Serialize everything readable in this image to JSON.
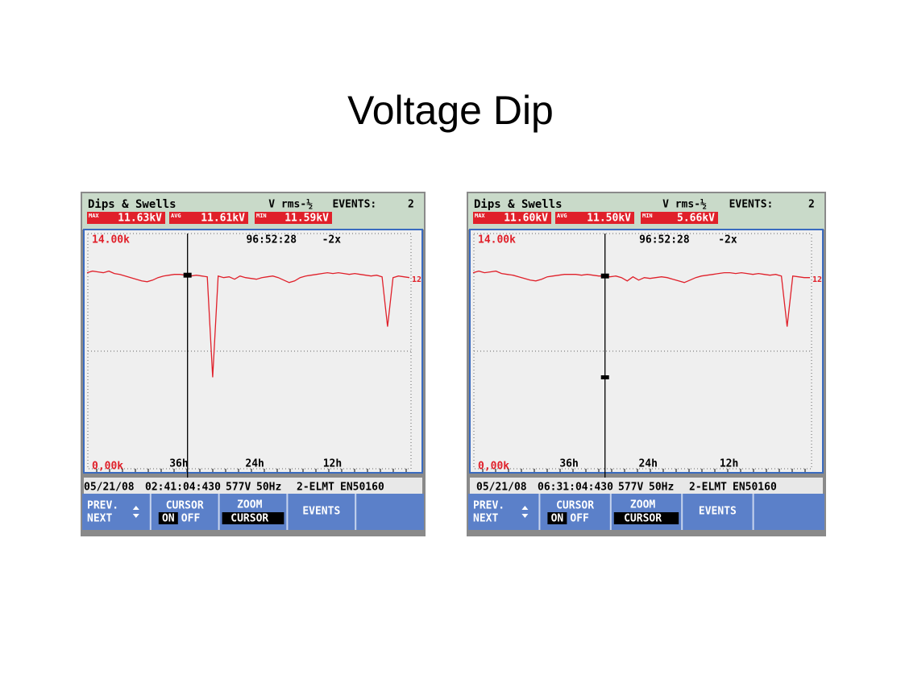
{
  "title": "Voltage Dip",
  "screens": [
    {
      "header": {
        "mode": "Dips & Swells",
        "measure": "V rms-½",
        "events_label": "EVENTS:",
        "events": "2"
      },
      "readings": [
        {
          "tag": "MAX",
          "value": "11.63kV"
        },
        {
          "tag": "AVG",
          "value": "11.61kV"
        },
        {
          "tag": "MIN",
          "value": "11.59kV"
        }
      ],
      "plot": {
        "y_top": "14.00k",
        "y_bottom": "0,00k",
        "timer": "96:52:28",
        "zoom": "-2x",
        "level": "12",
        "x_labels": [
          "36h",
          "24h",
          "12h"
        ],
        "ylim": [
          0,
          14
        ],
        "trace": [
          11.8,
          11.9,
          11.85,
          11.8,
          11.9,
          11.75,
          11.7,
          11.6,
          11.5,
          11.4,
          11.3,
          11.25,
          11.35,
          11.5,
          11.6,
          11.65,
          11.7,
          11.7,
          11.65,
          11.6,
          11.65,
          11.6,
          11.55,
          5.4,
          11.6,
          11.5,
          11.55,
          11.4,
          11.6,
          11.5,
          11.45,
          11.4,
          11.5,
          11.55,
          11.6,
          11.5,
          11.35,
          11.2,
          11.3,
          11.5,
          11.6,
          11.65,
          11.7,
          11.75,
          11.8,
          11.75,
          11.8,
          11.75,
          11.7,
          11.75,
          11.7,
          11.65,
          11.6,
          11.65,
          11.55,
          8.5,
          11.5,
          11.6,
          11.55,
          11.5
        ]
      },
      "status": [
        "05/21/08",
        "02:41:04:430",
        "577V",
        "50Hz",
        "2-ELMT",
        "EN50160"
      ],
      "buttons": {
        "prev": "PREV.",
        "next": "NEXT",
        "cursor": "CURSOR",
        "on": "ON",
        "off": "OFF",
        "zoom": "ZOOM",
        "zoom_cursor": "CURSOR",
        "events": "EVENTS"
      }
    },
    {
      "header": {
        "mode": "Dips & Swells",
        "measure": "V rms-½",
        "events_label": "EVENTS:",
        "events": "2"
      },
      "readings": [
        {
          "tag": "MAX",
          "value": "11.60kV"
        },
        {
          "tag": "AVG",
          "value": "11.50kV"
        },
        {
          "tag": "MIN",
          "value": "5.66kV"
        }
      ],
      "plot": {
        "y_top": "14.00k",
        "y_bottom": "0,00k",
        "timer": "96:52:28",
        "zoom": "-2x",
        "level": "12",
        "x_labels": [
          "36h",
          "24h",
          "12h"
        ],
        "ylim": [
          0,
          14
        ],
        "trace": [
          11.8,
          11.9,
          11.8,
          11.85,
          11.9,
          11.75,
          11.7,
          11.65,
          11.55,
          11.45,
          11.35,
          11.3,
          11.4,
          11.55,
          11.6,
          11.65,
          11.7,
          11.7,
          11.7,
          11.65,
          11.7,
          11.65,
          11.6,
          11.6,
          11.55,
          11.6,
          11.5,
          11.3,
          11.55,
          11.35,
          11.5,
          11.45,
          11.5,
          11.55,
          11.5,
          11.4,
          11.3,
          11.2,
          11.35,
          11.5,
          11.6,
          11.65,
          11.7,
          11.75,
          11.8,
          11.8,
          11.75,
          11.8,
          11.75,
          11.7,
          11.75,
          11.7,
          11.65,
          11.7,
          11.6,
          8.5,
          11.6,
          11.55,
          11.5,
          11.5
        ]
      },
      "status": [
        "05/21/08",
        "06:31:04:430",
        "577V",
        "50Hz",
        "2-ELMT",
        "EN50160"
      ],
      "buttons": {
        "prev": "PREV.",
        "next": "NEXT",
        "cursor": "CURSOR",
        "on": "ON",
        "off": "OFF",
        "zoom": "ZOOM",
        "zoom_cursor": "CURSOR",
        "events": "EVENTS"
      }
    }
  ]
}
